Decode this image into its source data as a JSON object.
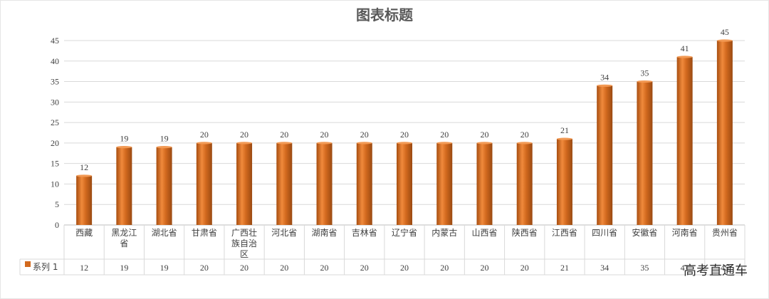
{
  "chart_data": {
    "type": "bar",
    "title": "图表标题",
    "categories": [
      "西藏",
      "黑龙江省",
      "湖北省",
      "甘肃省",
      "广西壮族自治区",
      "河北省",
      "湖南省",
      "吉林省",
      "辽宁省",
      "内蒙古",
      "山西省",
      "陕西省",
      "江西省",
      "四川省",
      "安徽省",
      "河南省",
      "贵州省"
    ],
    "series": [
      {
        "name": "系列 1",
        "values": [
          12,
          19,
          19,
          20,
          20,
          20,
          20,
          20,
          20,
          20,
          20,
          20,
          21,
          34,
          35,
          41,
          45
        ]
      }
    ],
    "ylim": [
      0,
      45
    ],
    "yticks": [
      0,
      5,
      10,
      15,
      20,
      25,
      30,
      35,
      40,
      45
    ],
    "grid": true,
    "data_table": true,
    "colors": {
      "bar": "#D2691E",
      "bar_dark": "#A84E10",
      "bar_light": "#F08A3C",
      "grid": "#D9D9D9",
      "axis": "#BFBFBF"
    }
  },
  "watermark": "高考直通车"
}
